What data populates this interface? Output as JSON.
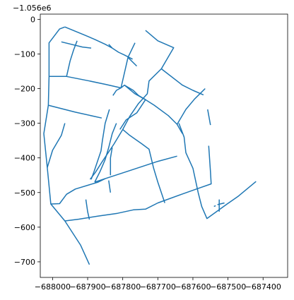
{
  "chart_data": {
    "type": "line",
    "title": "",
    "xlabel": "",
    "ylabel": "",
    "y_offset_text": "−1.056e6",
    "y_offset_value": -1056000,
    "xlim": [
      -688035,
      -687330
    ],
    "ylim": [
      -745,
      15
    ],
    "x_ticks": [
      {
        "value": -688000,
        "label": "−688000"
      },
      {
        "value": -687900,
        "label": "−687900"
      },
      {
        "value": -687800,
        "label": "−687800"
      },
      {
        "value": -687700,
        "label": "−687700"
      },
      {
        "value": -687600,
        "label": "−687600"
      },
      {
        "value": -687500,
        "label": "−687500"
      },
      {
        "value": -687400,
        "label": "−687400"
      }
    ],
    "y_ticks": [
      {
        "value": 0,
        "label": "0"
      },
      {
        "value": -100,
        "label": "−100"
      },
      {
        "value": -200,
        "label": "−200"
      },
      {
        "value": -300,
        "label": "−300"
      },
      {
        "value": -400,
        "label": "−400"
      },
      {
        "value": -500,
        "label": "−500"
      },
      {
        "value": -600,
        "label": "−600"
      },
      {
        "value": -700,
        "label": "−700"
      }
    ],
    "grid": false,
    "legend": "none",
    "line_color": "#1f77b4",
    "segments": [
      [
        [
          -687965,
          -22
        ],
        [
          -687980,
          -28
        ],
        [
          -688010,
          -68
        ],
        [
          -688010,
          -165
        ],
        [
          -688012,
          -248
        ],
        [
          -688025,
          -330
        ],
        [
          -688015,
          -428
        ],
        [
          -688005,
          -533
        ],
        [
          -687965,
          -582
        ],
        [
          -687920,
          -652
        ],
        [
          -687895,
          -708
        ]
      ],
      [
        [
          -687965,
          -22
        ],
        [
          -687910,
          -45
        ],
        [
          -687880,
          -58
        ],
        [
          -687850,
          -72
        ],
        [
          -687830,
          -83
        ],
        [
          -687812,
          -95
        ],
        [
          -687795,
          -103
        ],
        [
          -687772,
          -115
        ]
      ],
      [
        [
          -688010,
          -165
        ],
        [
          -687960,
          -165
        ],
        [
          -687895,
          -178
        ],
        [
          -687848,
          -188
        ],
        [
          -687805,
          -198
        ]
      ],
      [
        [
          -688012,
          -248
        ],
        [
          -687935,
          -268
        ],
        [
          -687860,
          -285
        ]
      ],
      [
        [
          -687975,
          -65
        ],
        [
          -687915,
          -80
        ],
        [
          -687890,
          -83
        ]
      ],
      [
        [
          -687930,
          -62
        ],
        [
          -687940,
          -88
        ],
        [
          -687950,
          -120
        ],
        [
          -687960,
          -165
        ]
      ],
      [
        [
          -687765,
          -68
        ],
        [
          -687785,
          -110
        ],
        [
          -687805,
          -198
        ]
      ],
      [
        [
          -687805,
          -198
        ],
        [
          -687795,
          -190
        ],
        [
          -687770,
          -205
        ],
        [
          -687755,
          -220
        ],
        [
          -687735,
          -232
        ]
      ],
      [
        [
          -687795,
          -190
        ],
        [
          -687765,
          -215
        ],
        [
          -687735,
          -232
        ],
        [
          -687710,
          -248
        ],
        [
          -687670,
          -278
        ],
        [
          -687645,
          -303
        ]
      ],
      [
        [
          -687785,
          -110
        ],
        [
          -687760,
          -135
        ]
      ],
      [
        [
          -687840,
          -72
        ],
        [
          -687830,
          -83
        ]
      ],
      [
        [
          -687735,
          -32
        ],
        [
          -687700,
          -62
        ],
        [
          -687655,
          -82
        ],
        [
          -687690,
          -143
        ],
        [
          -687725,
          -178
        ],
        [
          -687730,
          -215
        ],
        [
          -687755,
          -243
        ],
        [
          -687780,
          -280
        ],
        [
          -687800,
          -318
        ],
        [
          -687825,
          -360
        ],
        [
          -687858,
          -410
        ],
        [
          -687878,
          -442
        ],
        [
          -687893,
          -462
        ]
      ],
      [
        [
          -687690,
          -143
        ],
        [
          -687630,
          -190
        ],
        [
          -687600,
          -205
        ],
        [
          -687570,
          -218
        ]
      ],
      [
        [
          -687565,
          -200
        ],
        [
          -687595,
          -230
        ],
        [
          -687620,
          -260
        ],
        [
          -687645,
          -303
        ],
        [
          -687630,
          -330
        ]
      ],
      [
        [
          -687735,
          -232
        ],
        [
          -687760,
          -270
        ],
        [
          -687790,
          -290
        ],
        [
          -687808,
          -318
        ]
      ],
      [
        [
          -687800,
          -318
        ],
        [
          -687780,
          -335
        ],
        [
          -687745,
          -360
        ],
        [
          -687725,
          -375
        ],
        [
          -687712,
          -430
        ],
        [
          -687700,
          -470
        ],
        [
          -687680,
          -530
        ]
      ],
      [
        [
          -687805,
          -198
        ],
        [
          -687818,
          -205
        ],
        [
          -687828,
          -220
        ]
      ],
      [
        [
          -687640,
          -300
        ],
        [
          -687625,
          -340
        ],
        [
          -687620,
          -385
        ],
        [
          -687600,
          -430
        ],
        [
          -687585,
          -500
        ],
        [
          -687575,
          -540
        ],
        [
          -687560,
          -575
        ],
        [
          -687505,
          -535
        ],
        [
          -687470,
          -510
        ],
        [
          -687420,
          -468
        ]
      ],
      [
        [
          -687558,
          -260
        ],
        [
          -687550,
          -305
        ]
      ],
      [
        [
          -687555,
          -365
        ],
        [
          -687550,
          -440
        ],
        [
          -687548,
          -475
        ],
        [
          -687590,
          -490
        ],
        [
          -687632,
          -505
        ],
        [
          -687700,
          -530
        ]
      ],
      [
        [
          -687880,
          -470
        ],
        [
          -687865,
          -440
        ],
        [
          -687850,
          -405
        ],
        [
          -687840,
          -370
        ],
        [
          -687830,
          -330
        ],
        [
          -687818,
          -300
        ]
      ],
      [
        [
          -687890,
          -462
        ],
        [
          -687882,
          -440
        ],
        [
          -687862,
          -380
        ],
        [
          -687858,
          -350
        ],
        [
          -687850,
          -300
        ],
        [
          -687838,
          -260
        ]
      ],
      [
        [
          -688015,
          -428
        ],
        [
          -688000,
          -378
        ],
        [
          -687975,
          -335
        ],
        [
          -687965,
          -300
        ]
      ],
      [
        [
          -688005,
          -533
        ],
        [
          -687980,
          -532
        ],
        [
          -687960,
          -505
        ],
        [
          -687935,
          -490
        ],
        [
          -687870,
          -470
        ],
        [
          -687850,
          -460
        ]
      ],
      [
        [
          -687895,
          -578
        ],
        [
          -687900,
          -555
        ],
        [
          -687905,
          -520
        ]
      ],
      [
        [
          -687830,
          -370
        ],
        [
          -687835,
          -400
        ],
        [
          -687835,
          -450
        ]
      ],
      [
        [
          -687840,
          -465
        ],
        [
          -687835,
          -500
        ]
      ],
      [
        [
          -687965,
          -582
        ],
        [
          -687925,
          -577
        ],
        [
          -687870,
          -568
        ],
        [
          -687815,
          -560
        ],
        [
          -687770,
          -550
        ],
        [
          -687735,
          -548
        ],
        [
          -687700,
          -530
        ]
      ],
      [
        [
          -687880,
          -470
        ],
        [
          -687850,
          -460
        ],
        [
          -687790,
          -440
        ],
        [
          -687700,
          -410
        ],
        [
          -687645,
          -395
        ]
      ],
      [
        [
          -687525,
          -520
        ],
        [
          -687525,
          -555
        ]
      ],
      [
        [
          -687530,
          -535
        ],
        [
          -687510,
          -530
        ]
      ],
      [
        [
          -687535,
          -538
        ],
        [
          -687540,
          -540
        ]
      ]
    ]
  }
}
